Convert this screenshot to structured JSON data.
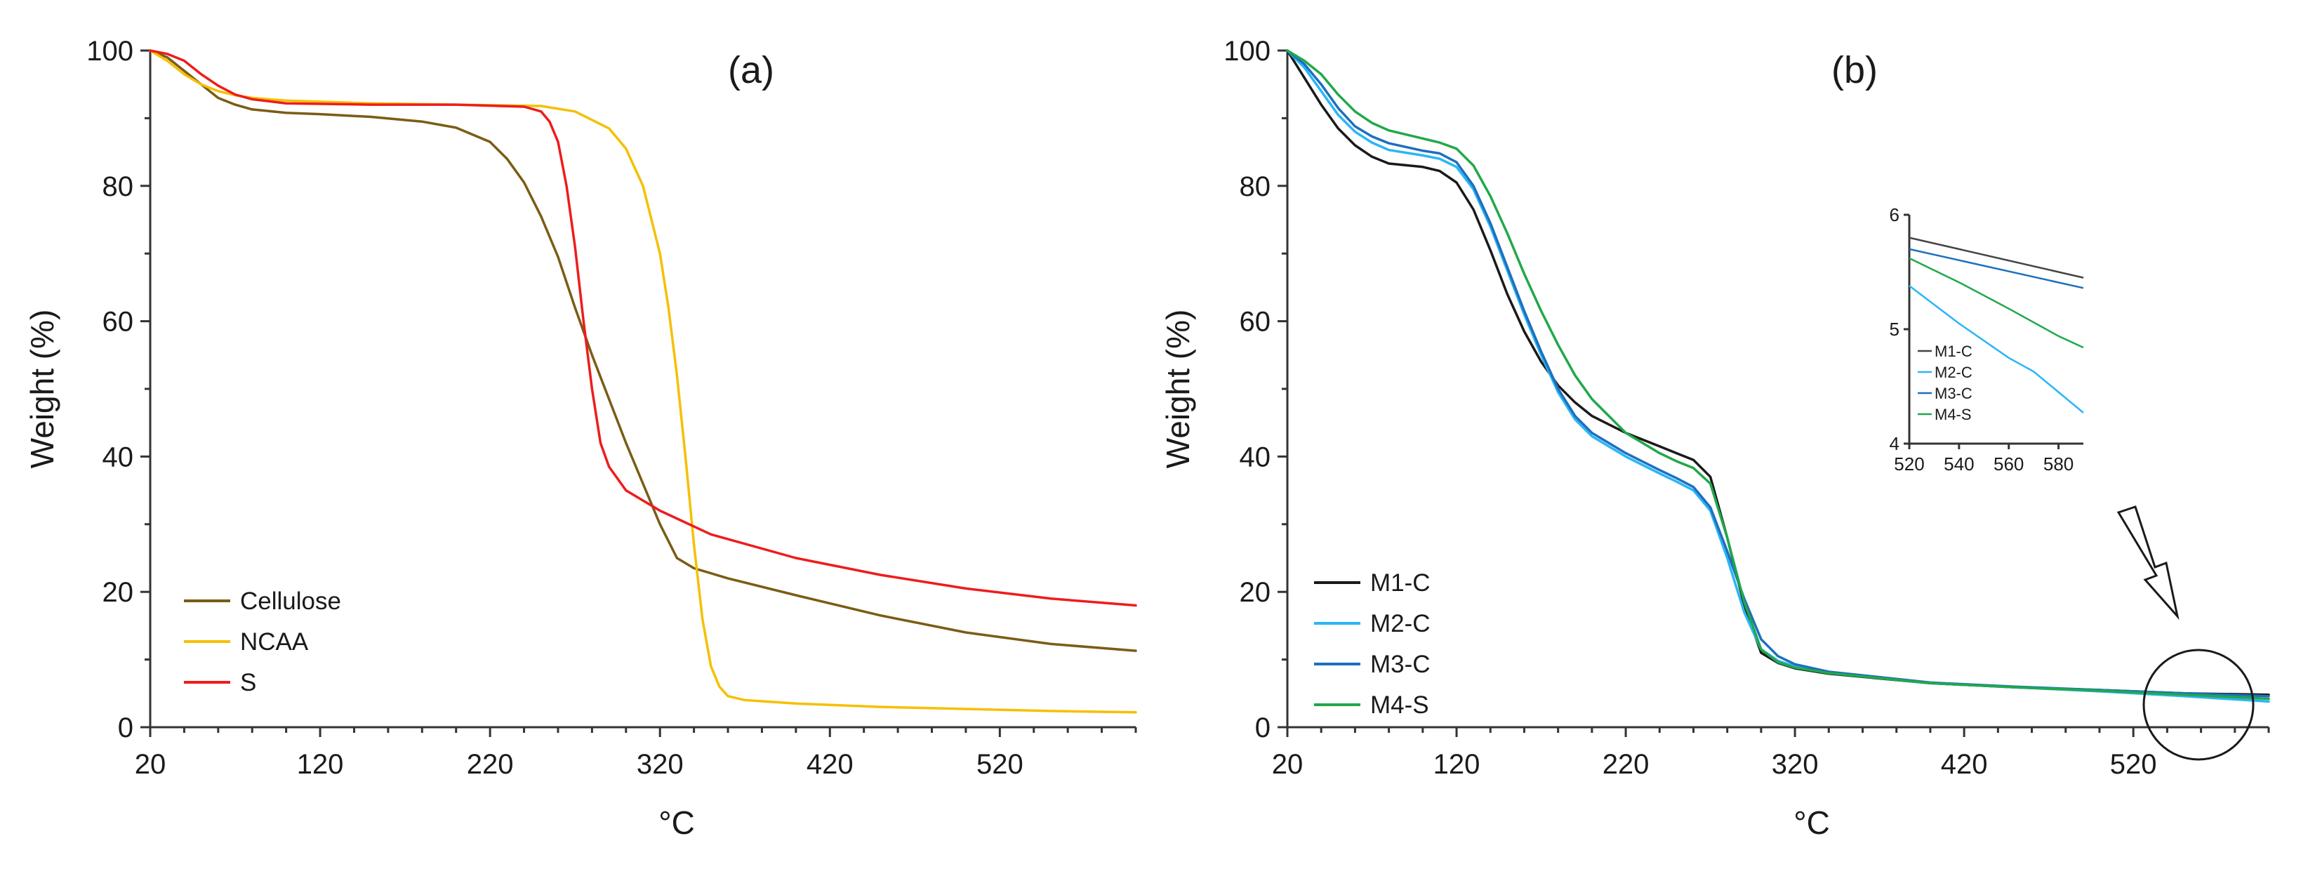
{
  "chart_data": [
    {
      "type": "line",
      "panel_label": "(a)",
      "xlabel": "°C",
      "ylabel": "Weight (%)",
      "xlim": [
        20,
        600
      ],
      "ylim": [
        0,
        100
      ],
      "xticks": [
        20,
        120,
        220,
        320,
        420,
        520
      ],
      "yticks": [
        0,
        20,
        40,
        60,
        80,
        100
      ],
      "legend_position": "bottom-left",
      "series": [
        {
          "name": "Cellulose",
          "color": "#7a5c14",
          "x": [
            20,
            30,
            40,
            50,
            60,
            70,
            80,
            100,
            120,
            150,
            180,
            200,
            220,
            230,
            240,
            250,
            260,
            270,
            280,
            290,
            300,
            310,
            320,
            330,
            340,
            360,
            400,
            450,
            500,
            550,
            600
          ],
          "y": [
            100,
            99,
            97,
            95,
            93,
            92,
            91.3,
            90.8,
            90.6,
            90.2,
            89.5,
            88.6,
            86.5,
            84,
            80.5,
            75.5,
            69.5,
            62,
            55,
            48.5,
            42,
            36,
            30,
            25,
            23.5,
            22,
            19.5,
            16.5,
            14,
            12.3,
            11.3
          ]
        },
        {
          "name": "NCAA",
          "color": "#f5c000",
          "x": [
            20,
            30,
            40,
            50,
            60,
            70,
            80,
            100,
            150,
            200,
            250,
            270,
            290,
            300,
            310,
            320,
            325,
            330,
            335,
            340,
            345,
            350,
            355,
            360,
            370,
            400,
            450,
            500,
            550,
            600
          ],
          "y": [
            100,
            98.5,
            96.5,
            95,
            94,
            93.4,
            93,
            92.6,
            92.2,
            92,
            91.8,
            91,
            88.5,
            85.5,
            80,
            70,
            62,
            52,
            40,
            27,
            16,
            9,
            6,
            4.6,
            4,
            3.5,
            3,
            2.7,
            2.4,
            2.2
          ]
        },
        {
          "name": "S",
          "color": "#ee1c1c",
          "x": [
            20,
            30,
            40,
            50,
            60,
            70,
            80,
            100,
            150,
            200,
            240,
            250,
            255,
            260,
            265,
            270,
            275,
            280,
            285,
            290,
            300,
            320,
            350,
            400,
            450,
            500,
            550,
            600
          ],
          "y": [
            100,
            99.5,
            98.5,
            96.5,
            94.8,
            93.5,
            92.8,
            92.2,
            92,
            92,
            91.7,
            91,
            89.5,
            86.5,
            80,
            71,
            60,
            50,
            42,
            38.5,
            35,
            32,
            28.5,
            25,
            22.5,
            20.5,
            19,
            18
          ]
        }
      ]
    },
    {
      "type": "line",
      "panel_label": "(b)",
      "xlabel": "°C",
      "ylabel": "Weight (%)",
      "xlim": [
        20,
        600
      ],
      "ylim": [
        0,
        100
      ],
      "xticks": [
        20,
        120,
        220,
        320,
        420,
        520
      ],
      "yticks": [
        0,
        20,
        40,
        60,
        80,
        100
      ],
      "legend_position": "bottom-left",
      "series": [
        {
          "name": "M1-C",
          "color": "#1a1a1a",
          "x": [
            20,
            30,
            40,
            50,
            60,
            70,
            80,
            100,
            110,
            120,
            130,
            140,
            150,
            160,
            170,
            180,
            190,
            200,
            220,
            240,
            250,
            260,
            270,
            280,
            290,
            300,
            310,
            320,
            340,
            400,
            450,
            500,
            550,
            600
          ],
          "y": [
            100,
            96,
            92,
            88.5,
            86,
            84.3,
            83.3,
            82.8,
            82.2,
            80.5,
            76.5,
            70.5,
            64,
            58.5,
            54,
            50.5,
            48,
            46,
            43.5,
            41.5,
            40.5,
            39.5,
            37,
            28,
            18,
            11,
            9.5,
            8.7,
            7.9,
            6.5,
            5.9,
            5.5,
            5.0,
            4.8
          ]
        },
        {
          "name": "M2-C",
          "color": "#29b6f6",
          "x": [
            20,
            30,
            40,
            50,
            60,
            70,
            80,
            100,
            110,
            120,
            130,
            140,
            150,
            160,
            170,
            180,
            190,
            200,
            220,
            240,
            250,
            260,
            270,
            280,
            290,
            300,
            310,
            320,
            340,
            400,
            450,
            500,
            550,
            600
          ],
          "y": [
            100,
            97.5,
            94,
            90.5,
            88,
            86.4,
            85.3,
            84.5,
            84,
            82.8,
            79.5,
            74,
            67.5,
            61,
            55,
            49.5,
            45.5,
            43,
            40,
            37.5,
            36.3,
            35,
            32,
            25,
            17,
            11.5,
            9.8,
            9.0,
            8.0,
            6.5,
            5.9,
            5.3,
            4.6,
            3.8
          ]
        },
        {
          "name": "M3-C",
          "color": "#1e6fbe",
          "x": [
            20,
            30,
            40,
            50,
            60,
            70,
            80,
            100,
            110,
            120,
            130,
            140,
            150,
            160,
            170,
            180,
            190,
            200,
            220,
            240,
            250,
            260,
            270,
            280,
            290,
            300,
            310,
            320,
            340,
            400,
            450,
            500,
            550,
            600
          ],
          "y": [
            100,
            98,
            95,
            91.5,
            88.8,
            87.3,
            86.3,
            85.2,
            84.8,
            83.5,
            80,
            74.5,
            68,
            61.5,
            55.5,
            50,
            46,
            43.5,
            40.5,
            38,
            36.8,
            35.5,
            32.5,
            26,
            19,
            13,
            10.5,
            9.3,
            8.2,
            6.6,
            6.0,
            5.5,
            5.0,
            4.6
          ]
        },
        {
          "name": "M4-S",
          "color": "#21a84a",
          "x": [
            20,
            30,
            40,
            50,
            60,
            70,
            80,
            100,
            110,
            120,
            130,
            140,
            150,
            160,
            170,
            180,
            190,
            200,
            220,
            240,
            250,
            260,
            270,
            280,
            290,
            300,
            310,
            320,
            340,
            400,
            450,
            500,
            550,
            600
          ],
          "y": [
            100,
            98.5,
            96.5,
            93.5,
            91,
            89.3,
            88.2,
            87,
            86.4,
            85.5,
            83,
            78.5,
            73,
            67,
            61.5,
            56.5,
            52,
            48.5,
            43.5,
            40.5,
            39.3,
            38.3,
            36,
            28,
            18.5,
            11.5,
            9.6,
            8.8,
            8.0,
            6.5,
            5.9,
            5.4,
            4.8,
            4.2
          ]
        }
      ],
      "inset": {
        "xlim": [
          520,
          590
        ],
        "ylim": [
          4,
          6
        ],
        "xticks": [
          520,
          540,
          560,
          580
        ],
        "yticks": [
          4,
          5,
          6
        ],
        "series": [
          {
            "name": "M1-C",
            "color": "#444444",
            "x": [
              520,
              590
            ],
            "y": [
              5.8,
              5.45
            ]
          },
          {
            "name": "M2-C",
            "color": "#29b6f6",
            "x": [
              520,
              540,
              560,
              570,
              580,
              590
            ],
            "y": [
              5.38,
              5.05,
              4.75,
              4.63,
              4.45,
              4.27
            ]
          },
          {
            "name": "M3-C",
            "color": "#1e6fbe",
            "x": [
              520,
              590
            ],
            "y": [
              5.7,
              5.36
            ]
          },
          {
            "name": "M4-S",
            "color": "#21a84a",
            "x": [
              520,
              540,
              560,
              580,
              590
            ],
            "y": [
              5.62,
              5.41,
              5.18,
              4.94,
              4.84
            ]
          }
        ]
      }
    }
  ]
}
